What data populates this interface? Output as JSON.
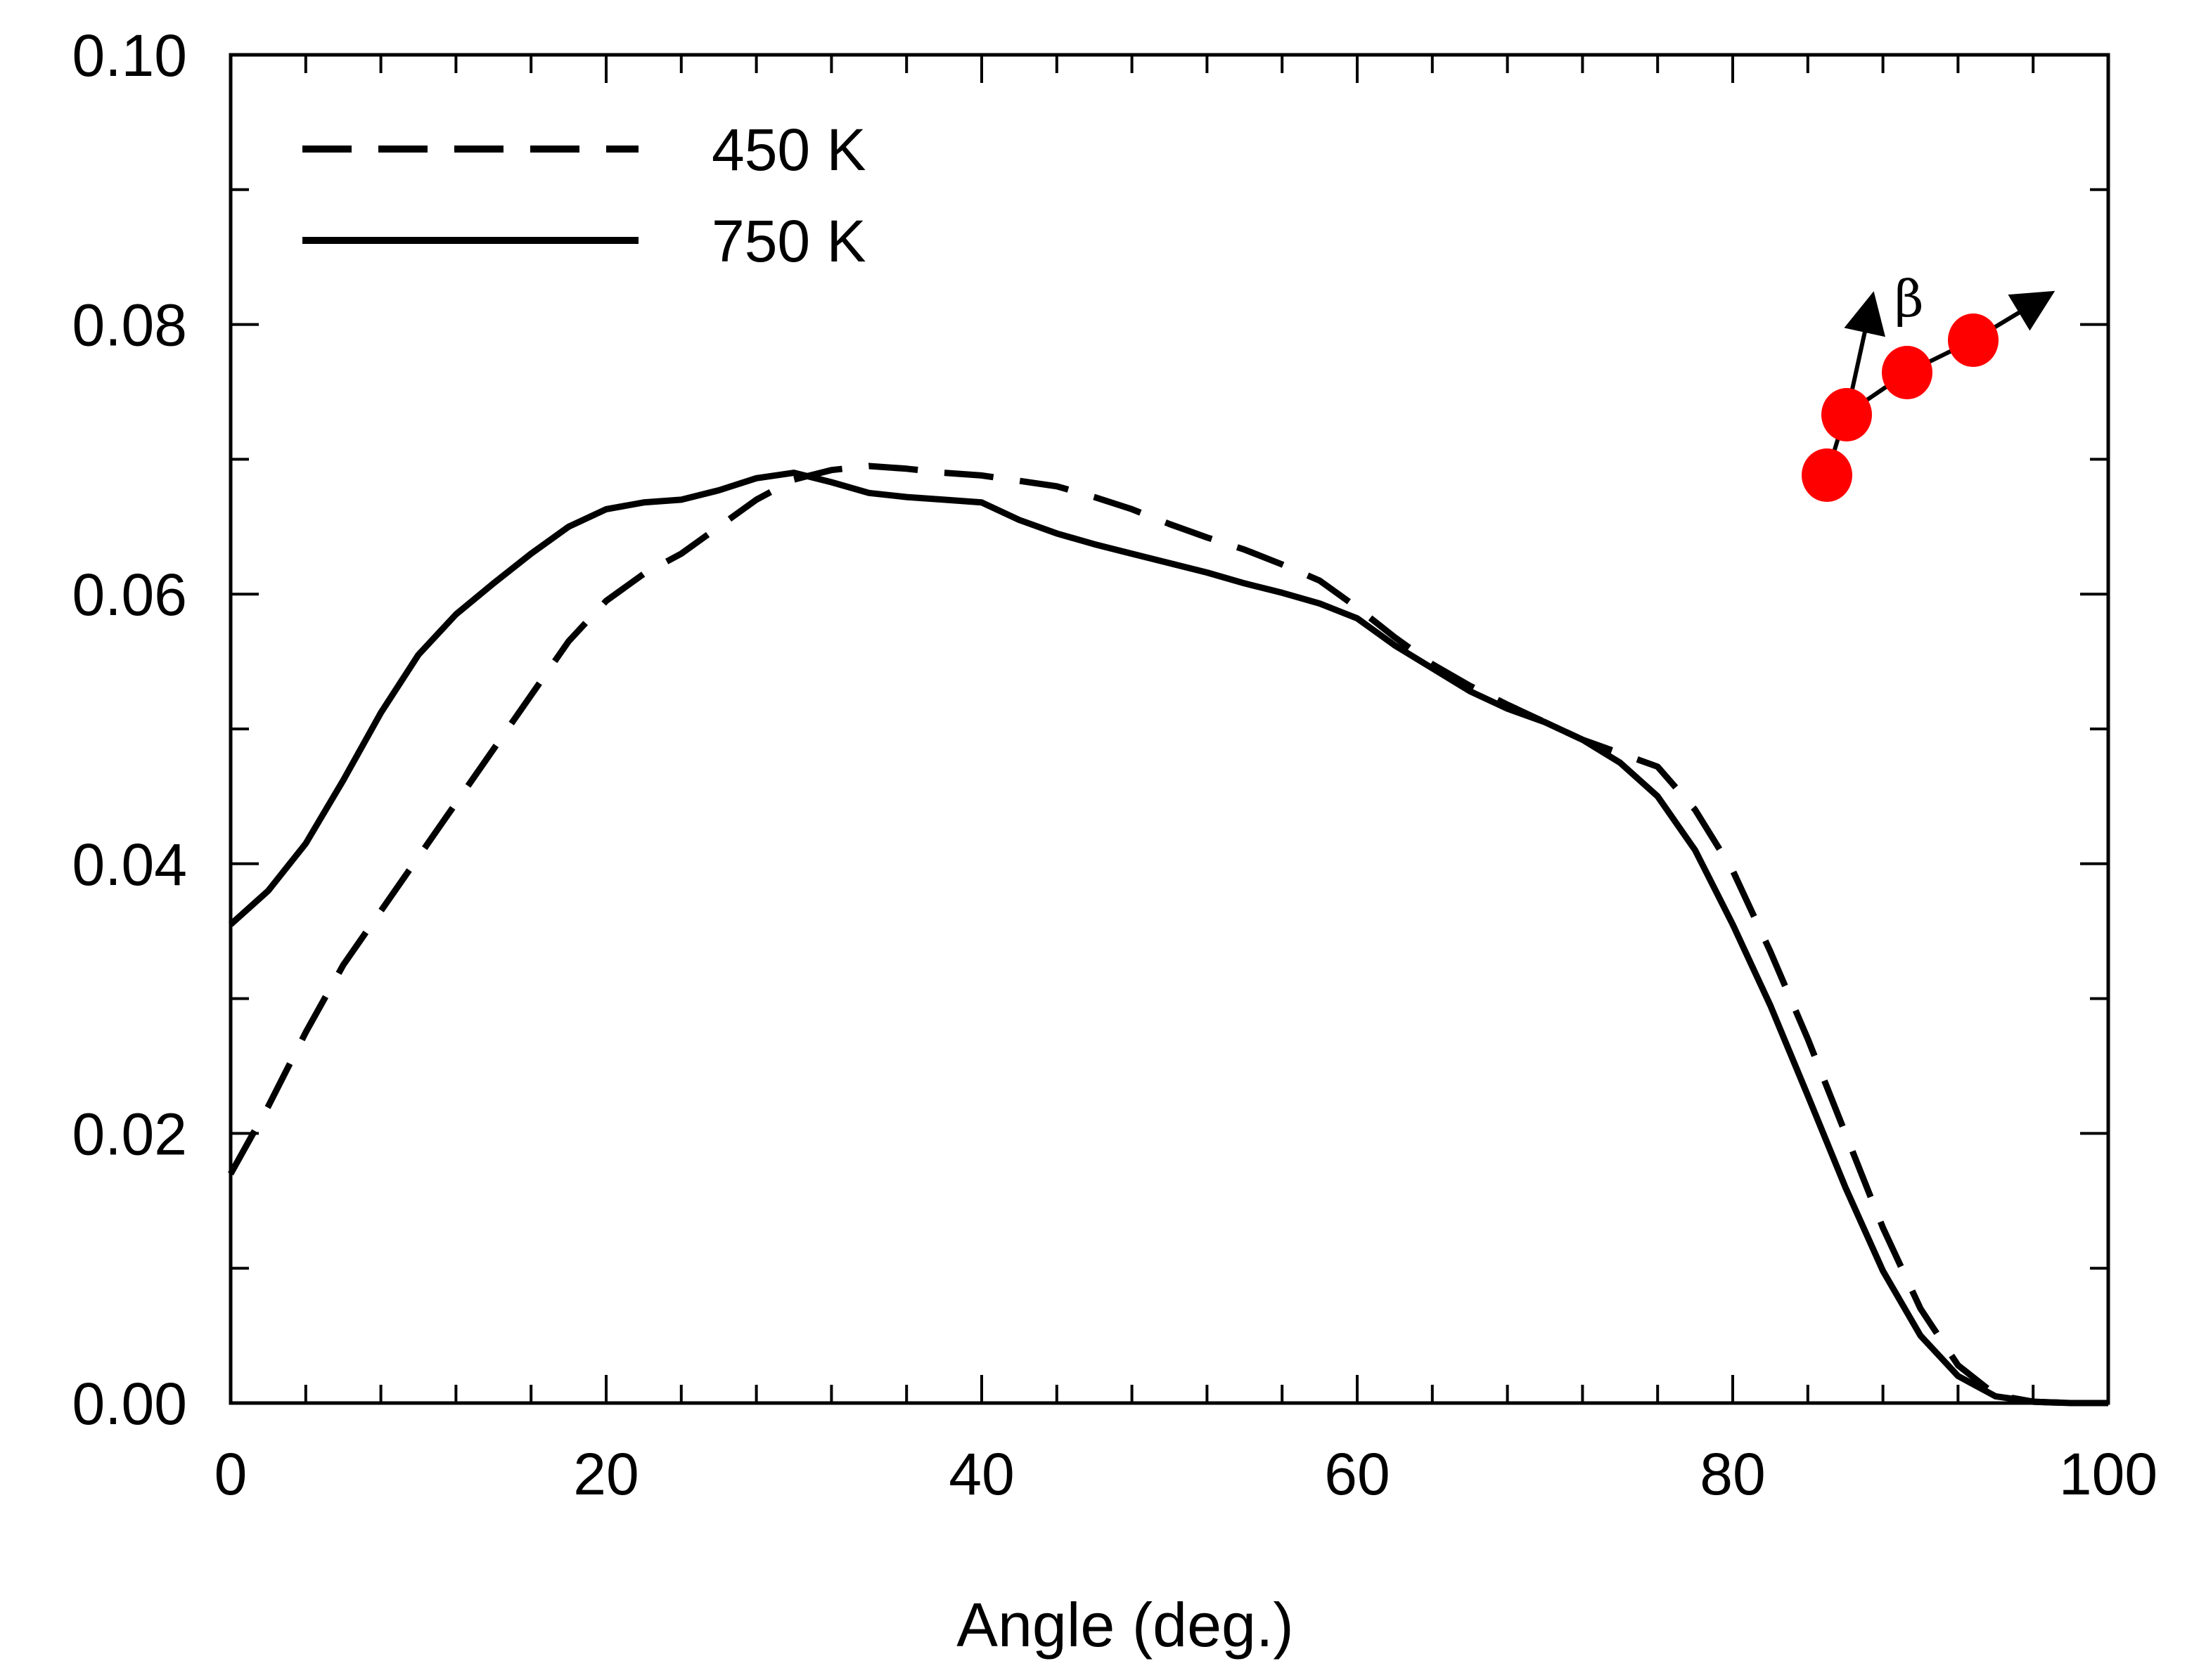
{
  "chart_data": {
    "type": "line",
    "title": "",
    "xlabel": "Angle (deg.)",
    "ylabel": "",
    "xlim": [
      0,
      100
    ],
    "ylim": [
      0,
      0.1
    ],
    "xticks": [
      0,
      20,
      40,
      60,
      80,
      100
    ],
    "xtick_labels": [
      "0",
      "20",
      "40",
      "60",
      "80",
      "100"
    ],
    "yticks": [
      0,
      0.02,
      0.04,
      0.06,
      0.08,
      0.1
    ],
    "ytick_labels": [
      "0.00",
      "0.02",
      "0.04",
      "0.06",
      "0.08",
      "0.10"
    ],
    "grid": false,
    "legend_position": "top-left",
    "series": [
      {
        "name": "450 K",
        "style": "dashed",
        "x": [
          0,
          2,
          4,
          6,
          8,
          10,
          12,
          14,
          16,
          18,
          20,
          22,
          24,
          26,
          28,
          30,
          32,
          34,
          36,
          38,
          40,
          42,
          44,
          46,
          48,
          50,
          52,
          54,
          56,
          58,
          60,
          62,
          64,
          66,
          68,
          70,
          72,
          74,
          76,
          78,
          80,
          82,
          84,
          86,
          88,
          90,
          92,
          94,
          96,
          98,
          100
        ],
        "y": [
          0.017,
          0.022,
          0.0275,
          0.0325,
          0.0365,
          0.0405,
          0.0445,
          0.0485,
          0.0525,
          0.0565,
          0.0595,
          0.0615,
          0.063,
          0.065,
          0.067,
          0.0685,
          0.0692,
          0.0695,
          0.0693,
          0.069,
          0.0688,
          0.0684,
          0.068,
          0.0672,
          0.0663,
          0.0652,
          0.0642,
          0.0633,
          0.0622,
          0.061,
          0.059,
          0.0568,
          0.0548,
          0.0532,
          0.0518,
          0.0505,
          0.0492,
          0.0482,
          0.0472,
          0.044,
          0.0395,
          0.0335,
          0.027,
          0.02,
          0.013,
          0.007,
          0.0028,
          0.0006,
          0.0001,
          0.0,
          0.0
        ]
      },
      {
        "name": "750 K",
        "style": "solid",
        "x": [
          0,
          2,
          4,
          6,
          8,
          10,
          12,
          14,
          16,
          18,
          20,
          22,
          24,
          26,
          28,
          30,
          32,
          34,
          36,
          38,
          40,
          42,
          44,
          46,
          48,
          50,
          52,
          54,
          56,
          58,
          60,
          62,
          64,
          66,
          68,
          70,
          72,
          74,
          76,
          78,
          80,
          82,
          84,
          86,
          88,
          90,
          92,
          94,
          96,
          98,
          100
        ],
        "y": [
          0.0355,
          0.038,
          0.0415,
          0.0462,
          0.0512,
          0.0555,
          0.0585,
          0.0608,
          0.063,
          0.065,
          0.0663,
          0.0668,
          0.067,
          0.0677,
          0.0686,
          0.069,
          0.0683,
          0.0675,
          0.0672,
          0.067,
          0.0668,
          0.0655,
          0.0645,
          0.0637,
          0.063,
          0.0623,
          0.0616,
          0.0608,
          0.0601,
          0.0593,
          0.0582,
          0.0562,
          0.0545,
          0.0528,
          0.0515,
          0.0505,
          0.0492,
          0.0475,
          0.045,
          0.041,
          0.0355,
          0.0295,
          0.0228,
          0.016,
          0.0098,
          0.005,
          0.002,
          0.0005,
          0.0001,
          0.0,
          0.0
        ]
      }
    ],
    "inset": {
      "description": "chain of four red atoms with direction arrows",
      "label": "β",
      "atom_color": "#ff0000"
    }
  }
}
